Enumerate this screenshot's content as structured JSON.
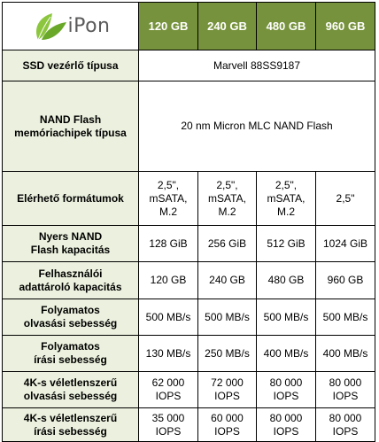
{
  "brand": {
    "name": "iPon",
    "accent": "#8cc63f",
    "header_bg": "#76923c",
    "label_bg": "#ebf1de"
  },
  "header": {
    "capacities": [
      "120 GB",
      "240 GB",
      "480 GB",
      "960 GB"
    ]
  },
  "rows": {
    "controller": {
      "label": "SSD vezérlő típusa",
      "value": "Marvell 88SS9187"
    },
    "nand": {
      "label": "NAND Flash\nmemóriachipek típusa",
      "value": "20 nm Micron MLC NAND Flash"
    },
    "formats": {
      "label": "Elérhető formátumok",
      "values": [
        "2,5\",\nmSATA,\nM.2",
        "2,5\",\nmSATA,\nM.2",
        "2,5\",\nmSATA,\nM.2",
        "2,5\""
      ]
    },
    "raw_capacity": {
      "label": "Nyers NAND\nFlash kapacitás",
      "values": [
        "128 GiB",
        "256 GiB",
        "512 GiB",
        "1024 GiB"
      ]
    },
    "user_capacity": {
      "label": "Felhasználói\nadattároló kapacitás",
      "values": [
        "120 GB",
        "240 GB",
        "480 GB",
        "960 GB"
      ]
    },
    "seq_read": {
      "label": "Folyamatos\nolvasási sebesség",
      "values": [
        "500 MB/s",
        "500 MB/s",
        "500 MB/s",
        "500 MB/s"
      ]
    },
    "seq_write": {
      "label": "Folyamatos\nírási sebesség",
      "values": [
        "130 MB/s",
        "250 MB/s",
        "400 MB/s",
        "400 MB/s"
      ]
    },
    "rand_read": {
      "label": "4K-s véletlenszerű\nolvasási sebesség",
      "values": [
        "62 000\nIOPS",
        "72 000\nIOPS",
        "80 000\nIOPS",
        "80 000\nIOPS"
      ]
    },
    "rand_write": {
      "label": "4K-s véletlenszerű\nírási sebesség",
      "values": [
        "35 000\nIOPS",
        "60 000\nIOPS",
        "80 000\nIOPS",
        "80 000\nIOPS"
      ]
    }
  }
}
